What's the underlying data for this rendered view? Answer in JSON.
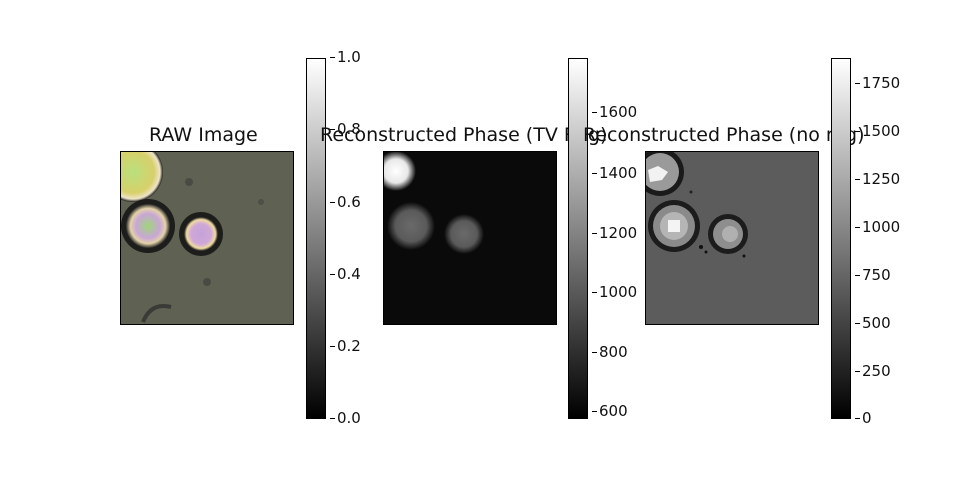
{
  "panels": [
    {
      "title": "RAW Image"
    },
    {
      "title": "Reconstructed Phase (TV Reg)"
    },
    {
      "title": "Reconstructed Phase (no reg)"
    }
  ],
  "chart_data": [
    {
      "type": "heatmap",
      "title": "RAW Image",
      "colorbar": {
        "range": [
          0.0,
          1.0
        ],
        "ticks": [
          "0.0",
          "0.2",
          "0.4",
          "0.6",
          "0.8",
          "1.0"
        ],
        "colormap": "gray"
      }
    },
    {
      "type": "heatmap",
      "title": "Reconstructed Phase (TV Reg)",
      "colorbar": {
        "range": [
          570,
          1790
        ],
        "ticks": [
          "600",
          "800",
          "1000",
          "1200",
          "1400",
          "1600"
        ],
        "colormap": "gray"
      }
    },
    {
      "type": "heatmap",
      "title": "Reconstructed Phase (no reg)",
      "colorbar": {
        "range": [
          0,
          1890
        ],
        "ticks": [
          "0",
          "250",
          "500",
          "750",
          "1000",
          "1250",
          "1500",
          "1750"
        ],
        "colormap": "gray"
      }
    }
  ]
}
